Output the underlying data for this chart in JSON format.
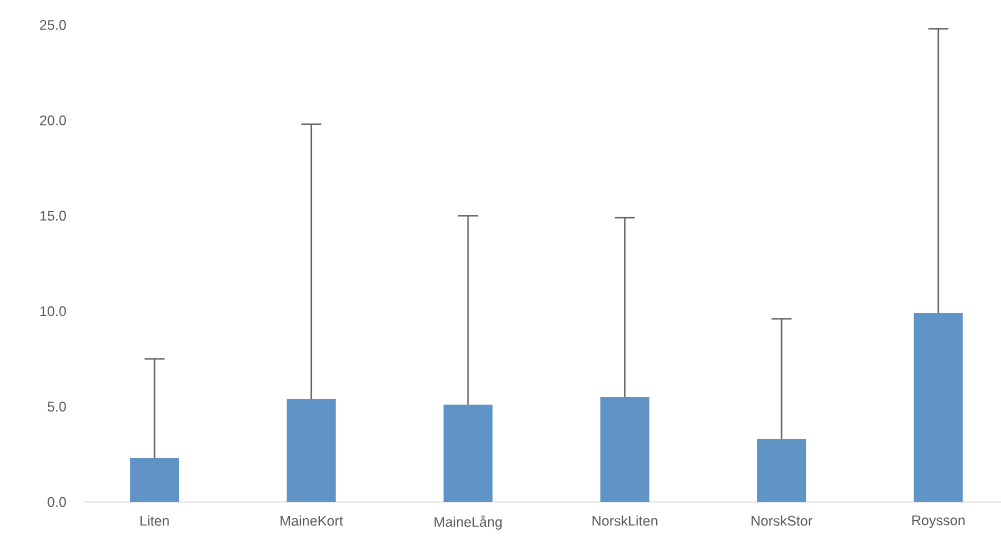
{
  "chart_data": {
    "type": "bar",
    "categories": [
      "Liten",
      "MaineKort",
      "MaineLång",
      "NorskLiten",
      "NorskStor",
      "Roysson"
    ],
    "values": [
      2.3,
      5.4,
      5.1,
      5.5,
      3.3,
      9.9
    ],
    "errors": [
      [
        2.3,
        7.5
      ],
      [
        5.4,
        19.8
      ],
      [
        5.1,
        15.0
      ],
      [
        5.5,
        14.9
      ],
      [
        3.3,
        9.6
      ],
      [
        9.9,
        24.8
      ]
    ],
    "color": "#6094c6",
    "ylim": [
      0,
      25
    ],
    "yticks": [
      {
        "value": 0,
        "label": "0.0"
      },
      {
        "value": 5,
        "label": "5.0"
      },
      {
        "value": 10,
        "label": "10.0"
      },
      {
        "value": 15,
        "label": "15.0"
      },
      {
        "value": 20,
        "label": "20.0"
      },
      {
        "value": 25,
        "label": "25.0"
      }
    ],
    "grid": false
  }
}
